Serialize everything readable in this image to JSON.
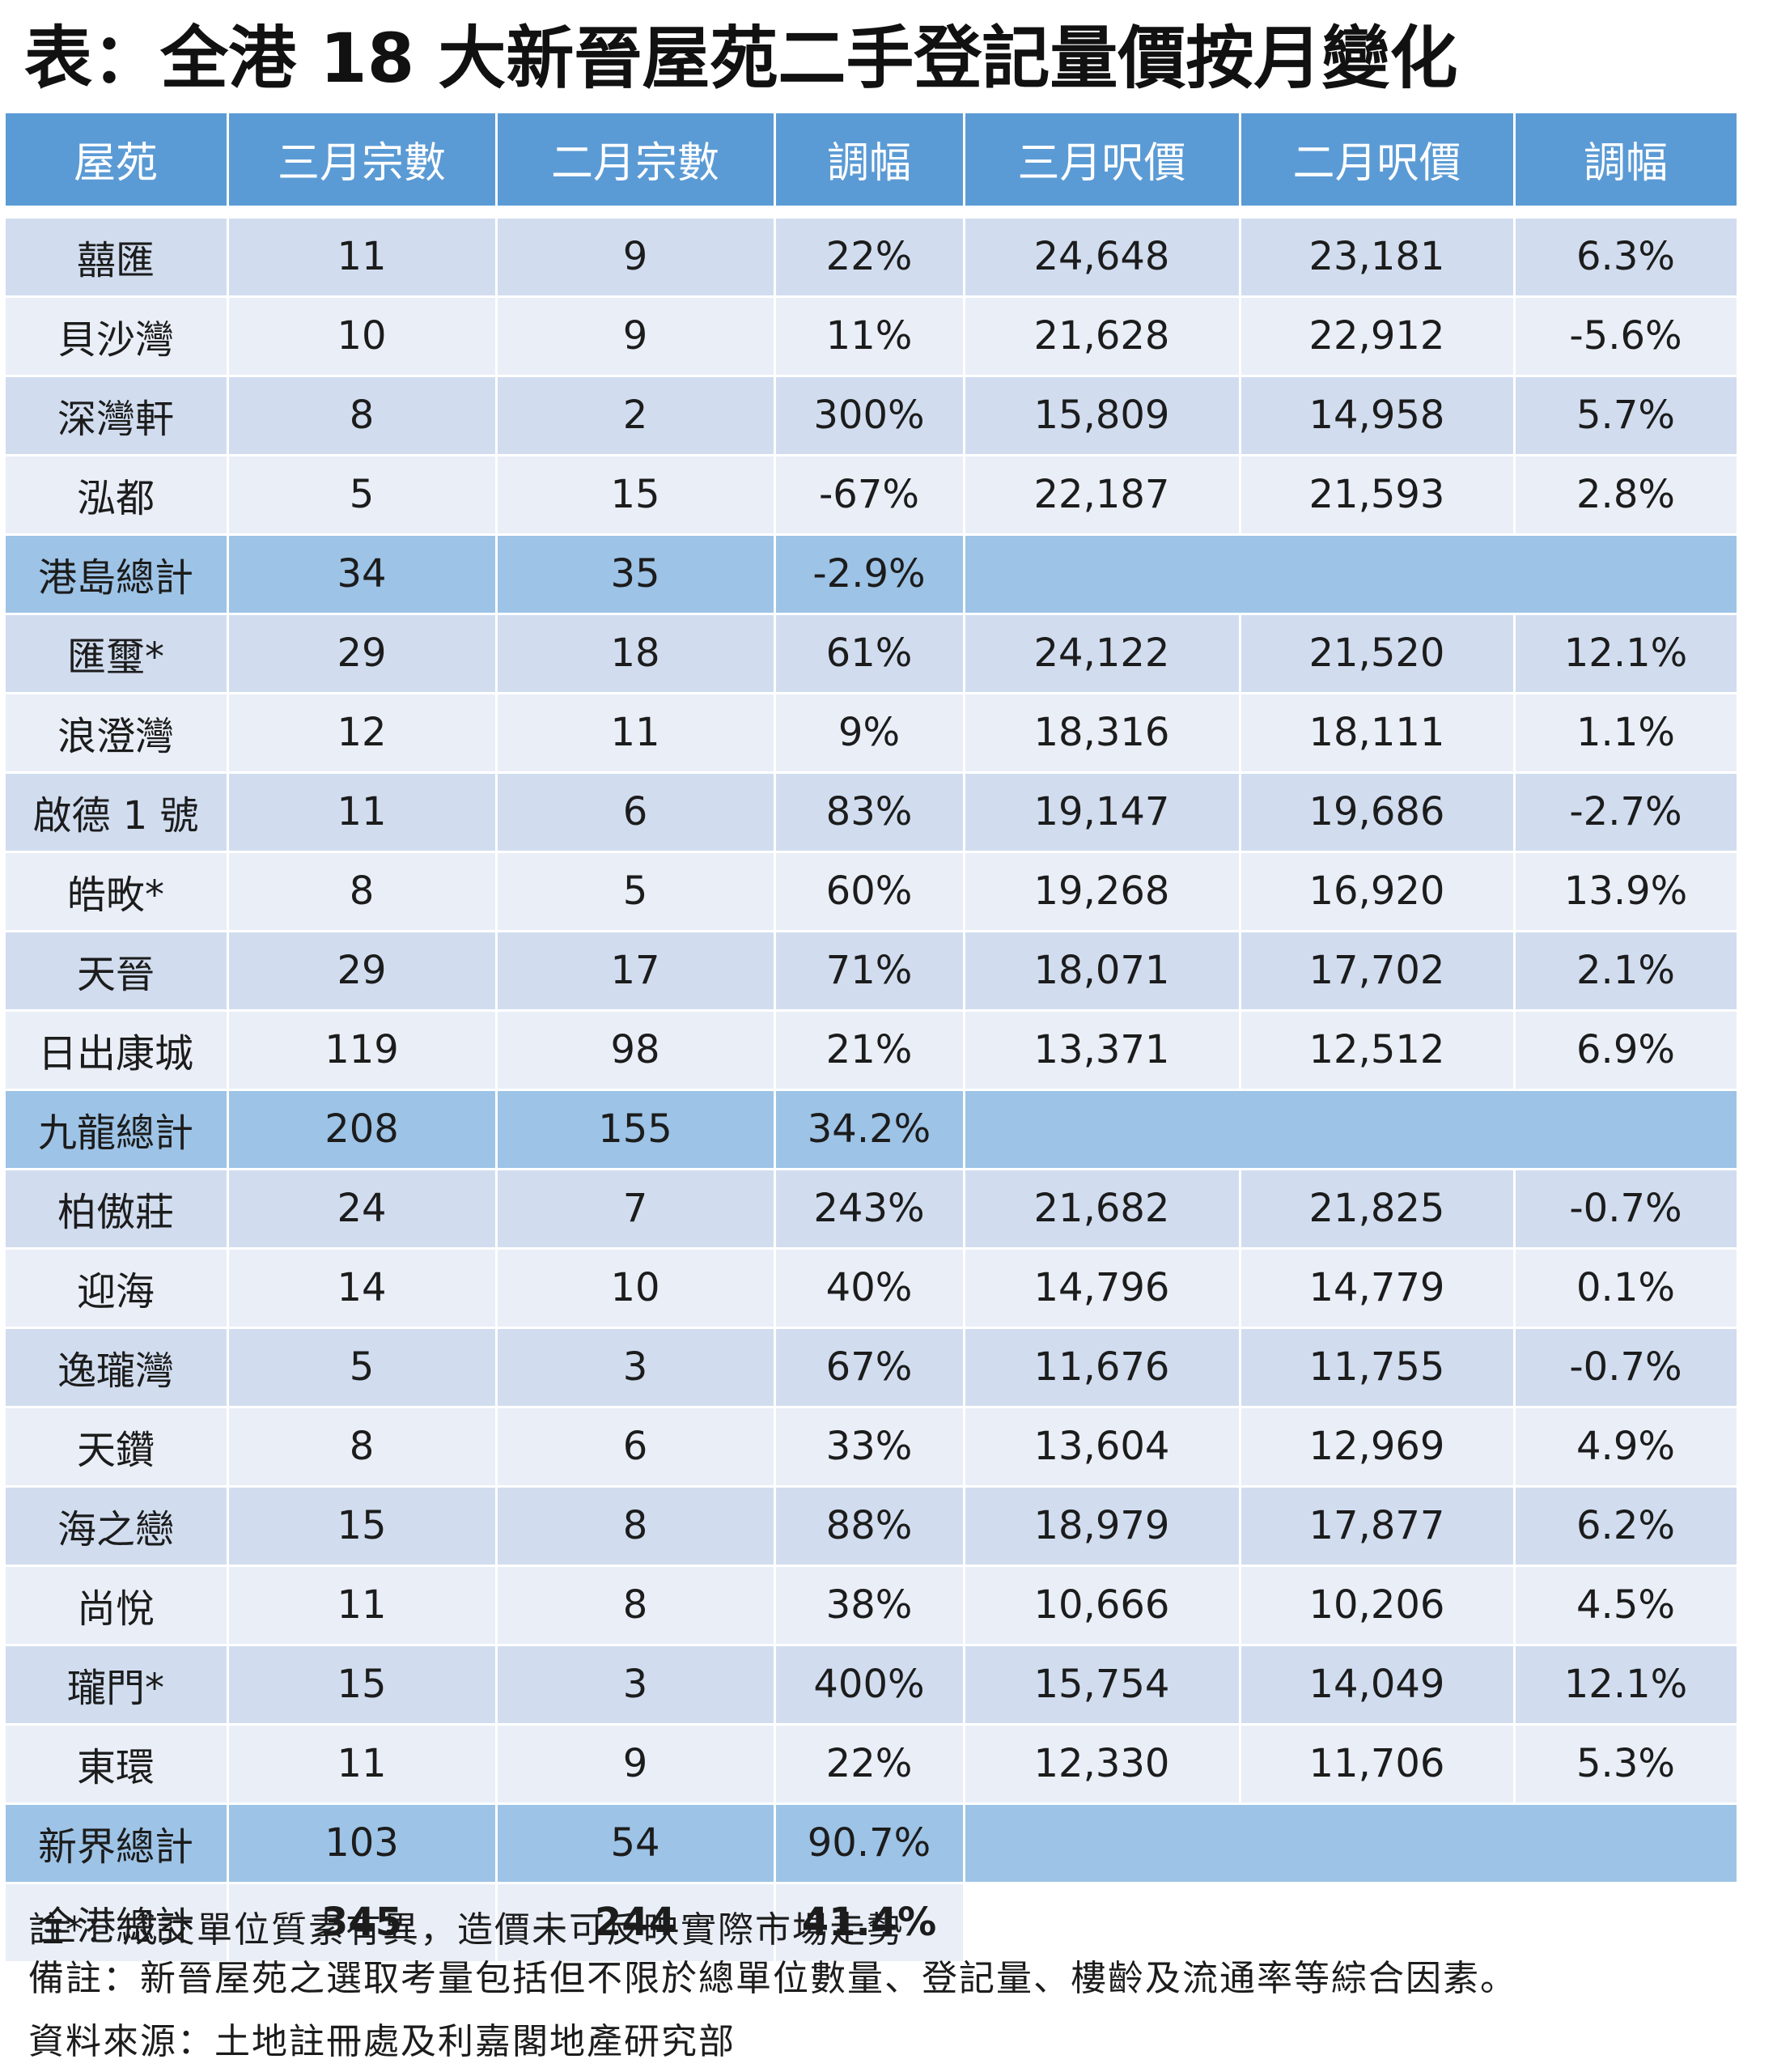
{
  "title": "表：全港 18 大新晉屋苑二手登記量價按月變化",
  "table": {
    "header": [
      "屋苑",
      "三月宗數",
      "二月宗數",
      "調幅",
      "三月呎價",
      "二月呎價",
      "調幅"
    ],
    "rows": [
      [
        "囍匯",
        "11",
        "9",
        "22%",
        "24,648",
        "23,181",
        "6.3%"
      ],
      [
        "貝沙灣",
        "10",
        "9",
        "11%",
        "21,628",
        "22,912",
        "-5.6%"
      ],
      [
        "深灣軒",
        "8",
        "2",
        "300%",
        "15,809",
        "14,958",
        "5.7%"
      ],
      [
        "泓都",
        "5",
        "15",
        "-67%",
        "22,187",
        "21,593",
        "2.8%"
      ],
      [
        "港島總計",
        "34",
        "35",
        "-2.9%"
      ],
      [
        "匯璽*",
        "29",
        "18",
        "61%",
        "24,122",
        "21,520",
        "12.1%"
      ],
      [
        "浪澄灣",
        "12",
        "11",
        "9%",
        "18,316",
        "18,111",
        "1.1%"
      ],
      [
        "啟德 1 號",
        "11",
        "6",
        "83%",
        "19,147",
        "19,686",
        "-2.7%"
      ],
      [
        "皓畋*",
        "8",
        "5",
        "60%",
        "19,268",
        "16,920",
        "13.9%"
      ],
      [
        "天晉",
        "29",
        "17",
        "71%",
        "18,071",
        "17,702",
        "2.1%"
      ],
      [
        "日出康城",
        "119",
        "98",
        "21%",
        "13,371",
        "12,512",
        "6.9%"
      ],
      [
        "九龍總計",
        "208",
        "155",
        "34.2%"
      ],
      [
        "柏傲莊",
        "24",
        "7",
        "243%",
        "21,682",
        "21,825",
        "-0.7%"
      ],
      [
        "迎海",
        "14",
        "10",
        "40%",
        "14,796",
        "14,779",
        "0.1%"
      ],
      [
        "逸瓏灣",
        "5",
        "3",
        "67%",
        "11,676",
        "11,755",
        "-0.7%"
      ],
      [
        "天鑽",
        "8",
        "6",
        "33%",
        "13,604",
        "12,969",
        "4.9%"
      ],
      [
        "海之戀",
        "15",
        "8",
        "88%",
        "18,979",
        "17,877",
        "6.2%"
      ],
      [
        "尚悅",
        "11",
        "8",
        "38%",
        "10,666",
        "10,206",
        "4.5%"
      ],
      [
        "瓏門*",
        "15",
        "3",
        "400%",
        "15,754",
        "14,049",
        "12.1%"
      ],
      [
        "東環",
        "11",
        "9",
        "22%",
        "12,330",
        "11,706",
        "5.3%"
      ],
      [
        "新界總計",
        "103",
        "54",
        "90.7%"
      ],
      [
        "全港總計",
        "345",
        "244",
        "41.4%"
      ]
    ]
  },
  "notes": [
    "註*：成交單位質素有異，造價未可反映實際市場走勢",
    "備註：新晉屋苑之選取考量包括但不限於總單位數量、登記量、樓齡及流通率等綜合因素。",
    "資料來源：土地註冊處及利嘉閣地產研究部"
  ]
}
